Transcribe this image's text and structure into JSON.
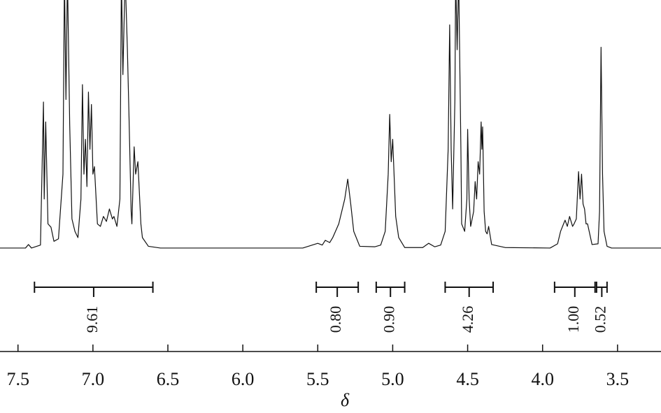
{
  "chart_data": {
    "type": "line",
    "xlabel": "δ",
    "xlim": [
      7.62,
      3.21
    ],
    "ylim": [
      0,
      100
    ],
    "xticks": [
      {
        "value": 7.5,
        "label": "7.5"
      },
      {
        "value": 7,
        "label": "7.0"
      },
      {
        "value": 6.5,
        "label": "6.5"
      },
      {
        "value": 6,
        "label": "6.0"
      },
      {
        "value": 5.5,
        "label": "5.5"
      },
      {
        "value": 5,
        "label": "5.0"
      },
      {
        "value": 4.5,
        "label": "4.5"
      },
      {
        "value": 4,
        "label": "4.0"
      },
      {
        "value": 3.5,
        "label": "3.5"
      }
    ],
    "x": [
      7.62,
      7.45,
      7.43,
      7.41,
      7.35,
      7.33,
      7.325,
      7.315,
      7.3,
      7.28,
      7.26,
      7.23,
      7.2,
      7.19,
      7.18,
      7.17,
      7.155,
      7.14,
      7.12,
      7.1,
      7.08,
      7.07,
      7.06,
      7.05,
      7.04,
      7.03,
      7.02,
      7.01,
      7.0,
      6.99,
      6.97,
      6.95,
      6.93,
      6.91,
      6.89,
      6.87,
      6.86,
      6.84,
      6.82,
      6.81,
      6.8,
      6.785,
      6.77,
      6.76,
      6.745,
      6.74,
      6.725,
      6.715,
      6.7,
      6.68,
      6.67,
      6.63,
      6.55,
      5.6,
      5.5,
      5.47,
      5.45,
      5.42,
      5.4,
      5.36,
      5.32,
      5.3,
      5.28,
      5.26,
      5.22,
      5.12,
      5.08,
      5.05,
      5.03,
      5.02,
      5.01,
      5.0,
      4.98,
      4.96,
      4.92,
      4.8,
      4.76,
      4.72,
      4.68,
      4.65,
      4.63,
      4.62,
      4.61,
      4.6,
      4.585,
      4.58,
      4.57,
      4.56,
      4.545,
      4.54,
      4.52,
      4.505,
      4.5,
      4.49,
      4.48,
      4.46,
      4.45,
      4.44,
      4.43,
      4.42,
      4.41,
      4.405,
      4.4,
      4.39,
      4.38,
      4.37,
      4.36,
      4.34,
      4.25,
      3.95,
      3.9,
      3.88,
      3.86,
      3.85,
      3.835,
      3.82,
      3.8,
      3.79,
      3.775,
      3.76,
      3.75,
      3.74,
      3.73,
      3.72,
      3.71,
      3.7,
      3.67,
      3.63,
      3.62,
      3.61,
      3.6,
      3.59,
      3.57,
      3.54,
      3.21
    ],
    "series": [
      {
        "color": "#111111",
        "values": [
          0.3,
          0.3,
          1.7,
          0.3,
          1.5,
          59,
          20,
          51,
          10,
          8.7,
          3,
          4,
          30,
          110,
          60,
          110,
          50,
          12,
          7,
          4.5,
          20,
          66,
          30,
          44,
          25,
          63,
          40,
          58,
          30,
          33,
          10,
          9,
          13,
          11,
          16,
          12,
          13,
          9,
          20,
          110,
          70,
          110,
          80,
          55,
          15,
          10,
          41,
          30,
          35,
          10,
          4.5,
          1,
          0.3,
          0.3,
          2.2,
          1.5,
          3.4,
          2.5,
          4.5,
          10,
          20,
          28,
          18,
          7,
          1,
          0.8,
          1.5,
          7,
          30,
          54,
          35,
          44,
          13,
          4.5,
          0.5,
          0.5,
          2.2,
          0.8,
          1.5,
          7,
          40,
          90,
          40,
          16,
          60,
          110,
          80,
          110,
          40,
          10,
          7,
          20,
          48,
          20,
          9,
          15,
          27,
          20,
          35,
          30,
          51,
          40,
          49,
          15,
          7,
          6,
          9,
          1.7,
          0.5,
          0.3,
          2,
          7,
          10,
          11.5,
          9,
          13,
          9,
          10,
          12,
          31,
          20,
          30,
          18,
          16,
          10,
          10,
          1.7,
          2,
          15,
          81,
          30,
          7,
          1,
          0.3,
          0.3
        ]
      }
    ],
    "integrals": {
      "ranges": [
        [
          7.39,
          6.6
        ],
        [
          5.51,
          5.23
        ],
        [
          5.11,
          4.92
        ],
        [
          4.65,
          4.33
        ],
        [
          3.92,
          3.65
        ],
        [
          3.64,
          3.57
        ]
      ],
      "values": [
        9.61,
        0.8,
        0.9,
        4.26,
        1,
        0.52
      ],
      "value_labels": [
        "9.61",
        "0.80",
        "0.90",
        "4.26",
        "1.00",
        "0.52"
      ]
    }
  }
}
